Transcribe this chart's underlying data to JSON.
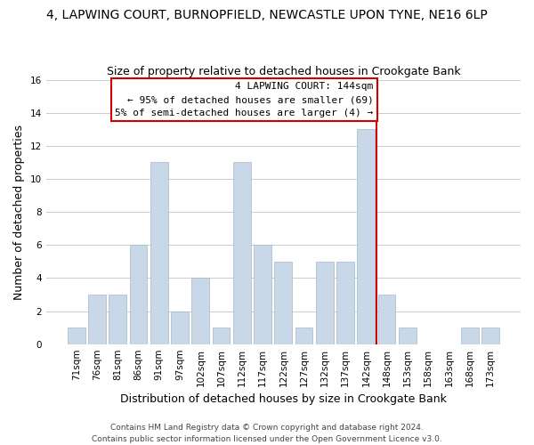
{
  "title": "4, LAPWING COURT, BURNOPFIELD, NEWCASTLE UPON TYNE, NE16 6LP",
  "subtitle": "Size of property relative to detached houses in Crookgate Bank",
  "xlabel": "Distribution of detached houses by size in Crookgate Bank",
  "ylabel": "Number of detached properties",
  "footer_lines": [
    "Contains HM Land Registry data © Crown copyright and database right 2024.",
    "Contains public sector information licensed under the Open Government Licence v3.0."
  ],
  "bin_labels": [
    "71sqm",
    "76sqm",
    "81sqm",
    "86sqm",
    "91sqm",
    "97sqm",
    "102sqm",
    "107sqm",
    "112sqm",
    "117sqm",
    "122sqm",
    "127sqm",
    "132sqm",
    "137sqm",
    "142sqm",
    "148sqm",
    "153sqm",
    "158sqm",
    "163sqm",
    "168sqm",
    "173sqm"
  ],
  "bar_heights": [
    1,
    3,
    3,
    6,
    11,
    2,
    4,
    1,
    11,
    6,
    5,
    1,
    5,
    5,
    13,
    3,
    1,
    0,
    0,
    1,
    1
  ],
  "bar_color": "#c8d8e8",
  "bar_edge_color": "#a8b8c8",
  "marker_bin_index": 14,
  "marker_color": "#cc0000",
  "ylim": [
    0,
    16
  ],
  "yticks": [
    0,
    2,
    4,
    6,
    8,
    10,
    12,
    14,
    16
  ],
  "annotation_title": "4 LAPWING COURT: 144sqm",
  "annotation_line1": "← 95% of detached houses are smaller (69)",
  "annotation_line2": "5% of semi-detached houses are larger (4) →",
  "annotation_box_color": "#ffffff",
  "annotation_box_edge": "#cc0000",
  "grid_color": "#cccccc",
  "background_color": "#ffffff",
  "title_fontsize": 10,
  "subtitle_fontsize": 9,
  "xlabel_fontsize": 9,
  "ylabel_fontsize": 9,
  "tick_fontsize": 7.5,
  "annotation_fontsize": 8,
  "footer_fontsize": 6.5
}
